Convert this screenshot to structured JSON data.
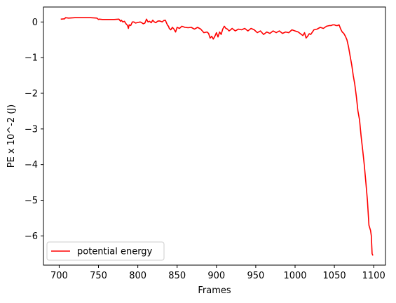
{
  "chart_data": {
    "type": "line",
    "title": "",
    "xlabel": "Frames",
    "ylabel": "PE x 10^-2 (J)",
    "xlim": [
      680,
      1115
    ],
    "ylim": [
      -6.82,
      0.42
    ],
    "x_ticks": [
      700,
      750,
      800,
      850,
      900,
      950,
      1000,
      1050,
      1100
    ],
    "x_tick_labels": [
      "700",
      "750",
      "800",
      "850",
      "900",
      "950",
      "1000",
      "1050",
      "1100"
    ],
    "y_ticks": [
      0,
      -1,
      -2,
      -3,
      -4,
      -5,
      -6
    ],
    "y_tick_labels": [
      "0",
      "−1",
      "−2",
      "−3",
      "−4",
      "−5",
      "−6"
    ],
    "grid": false,
    "legend_position": "lower-left",
    "series": [
      {
        "name": "potential energy",
        "color": "#ff0000",
        "x": [
          702,
          707,
          708,
          712,
          720,
          730,
          740,
          748,
          750,
          751,
          755,
          760,
          770,
          776,
          778,
          779,
          781,
          783,
          785,
          787,
          788,
          789,
          791,
          793,
          795,
          797,
          799,
          801,
          803,
          805,
          807,
          809,
          811,
          813,
          815,
          817,
          819,
          821,
          823,
          825,
          827,
          829,
          831,
          833,
          835,
          837,
          838,
          839,
          840,
          842,
          844,
          846,
          848,
          850,
          853,
          856,
          860,
          864,
          868,
          872,
          876,
          880,
          884,
          888,
          890,
          892,
          894,
          896,
          898,
          900,
          902,
          904,
          906,
          908,
          910,
          912,
          914,
          916,
          918,
          920,
          924,
          928,
          932,
          936,
          940,
          944,
          948,
          952,
          956,
          960,
          964,
          968,
          972,
          976,
          980,
          984,
          988,
          992,
          996,
          1000,
          1004,
          1008,
          1010,
          1012,
          1014,
          1016,
          1018,
          1020,
          1024,
          1028,
          1032,
          1036,
          1040,
          1044,
          1046,
          1048,
          1050,
          1052,
          1054,
          1056,
          1058,
          1060,
          1062,
          1064,
          1066,
          1068,
          1070,
          1072,
          1074,
          1076,
          1078,
          1080,
          1082,
          1084,
          1086,
          1088,
          1090,
          1092,
          1094,
          1096,
          1097,
          1098,
          1099
        ],
        "values": [
          0.08,
          0.09,
          0.12,
          0.11,
          0.12,
          0.12,
          0.12,
          0.11,
          0.07,
          0.08,
          0.07,
          0.07,
          0.07,
          0.08,
          0.02,
          0.05,
          0.0,
          0.02,
          -0.05,
          -0.1,
          -0.18,
          -0.08,
          -0.1,
          0.0,
          0.0,
          -0.03,
          -0.02,
          -0.01,
          0.0,
          -0.02,
          -0.05,
          -0.03,
          0.08,
          0.0,
          0.02,
          -0.02,
          0.05,
          0.0,
          -0.02,
          0.02,
          0.03,
          0.02,
          0.0,
          0.04,
          0.05,
          -0.05,
          -0.1,
          -0.12,
          -0.18,
          -0.22,
          -0.15,
          -0.2,
          -0.28,
          -0.15,
          -0.18,
          -0.12,
          -0.15,
          -0.16,
          -0.15,
          -0.2,
          -0.15,
          -0.2,
          -0.3,
          -0.28,
          -0.32,
          -0.45,
          -0.4,
          -0.48,
          -0.4,
          -0.3,
          -0.42,
          -0.28,
          -0.35,
          -0.2,
          -0.12,
          -0.18,
          -0.2,
          -0.25,
          -0.22,
          -0.18,
          -0.25,
          -0.2,
          -0.22,
          -0.18,
          -0.25,
          -0.18,
          -0.22,
          -0.3,
          -0.25,
          -0.35,
          -0.28,
          -0.32,
          -0.25,
          -0.3,
          -0.25,
          -0.32,
          -0.28,
          -0.3,
          -0.22,
          -0.25,
          -0.28,
          -0.35,
          -0.38,
          -0.3,
          -0.45,
          -0.4,
          -0.33,
          -0.35,
          -0.22,
          -0.2,
          -0.15,
          -0.18,
          -0.12,
          -0.1,
          -0.1,
          -0.08,
          -0.08,
          -0.1,
          -0.1,
          -0.08,
          -0.2,
          -0.28,
          -0.32,
          -0.4,
          -0.5,
          -0.7,
          -0.95,
          -1.2,
          -1.5,
          -1.75,
          -2.1,
          -2.5,
          -2.75,
          -3.2,
          -3.6,
          -4.0,
          -4.5,
          -5.0,
          -5.7,
          -5.85,
          -6.0,
          -6.5,
          -6.55
        ]
      }
    ]
  }
}
